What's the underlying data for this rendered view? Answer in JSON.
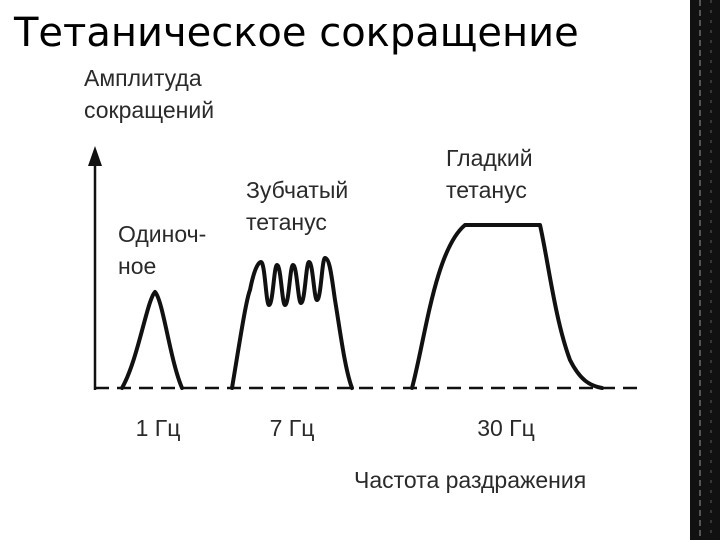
{
  "title": "Тетаническое сокращение",
  "diagram": {
    "y_axis_label": [
      "Амплитуда",
      "сокращений"
    ],
    "curves": [
      {
        "label": [
          "Одиноч-",
          "ное"
        ],
        "frequency": "1 Гц"
      },
      {
        "label": [
          "Зубчатый",
          "тетанус"
        ],
        "frequency": "7 Гц"
      },
      {
        "label": [
          "Гладкий",
          "тетанус"
        ],
        "frequency": "30 Гц"
      }
    ],
    "x_axis_label": "Частота раздражения"
  }
}
